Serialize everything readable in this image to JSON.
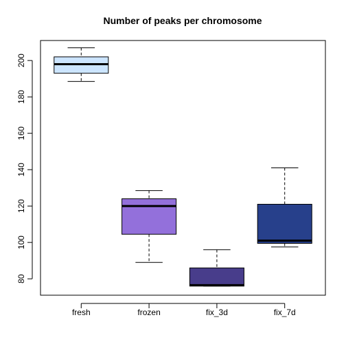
{
  "chart_data": {
    "type": "boxplot",
    "title": "Number of peaks per chromosome",
    "xlabel": "",
    "ylabel": "",
    "ylim": [
      71,
      211
    ],
    "yticks": [
      80,
      100,
      120,
      140,
      160,
      180,
      200
    ],
    "categories": [
      "fresh",
      "frozen",
      "fix_3d",
      "fix_7d"
    ],
    "boxes": [
      {
        "category": "fresh",
        "min": 188.5,
        "q1": 193,
        "median": 198,
        "q3": 202,
        "max": 207,
        "color": "#cce5ff"
      },
      {
        "category": "frozen",
        "min": 89,
        "q1": 104.5,
        "median": 120,
        "q3": 124,
        "max": 128.5,
        "color": "#9370db"
      },
      {
        "category": "fix_3d",
        "min": 76,
        "q1": 76,
        "median": 76.5,
        "q3": 86,
        "max": 96,
        "color": "#483d8b"
      },
      {
        "category": "fix_7d",
        "min": 97.5,
        "q1": 99.5,
        "median": 101,
        "q3": 121,
        "max": 141,
        "color": "#27408b"
      }
    ],
    "grid": false,
    "legend": "none"
  }
}
